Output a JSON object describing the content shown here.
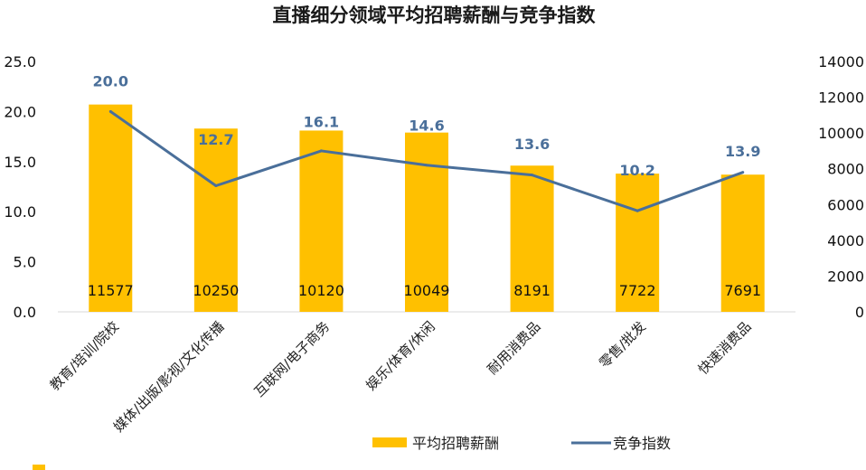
{
  "chart_data": {
    "type": "bar",
    "title": "直播细分领域平均招聘薪酬与竞争指数",
    "categories": [
      "教育/培训/院校",
      "媒体/出版/影视/文化传播",
      "互联网/电子商务",
      "娱乐/体育/休闲",
      "耐用消费品",
      "零售/批发",
      "快速消费品"
    ],
    "series": [
      {
        "name": "平均招聘薪酬",
        "type": "bar",
        "axis": "left",
        "values": [
          20.7,
          18.3,
          18.1,
          17.9,
          14.6,
          13.8,
          13.7
        ],
        "labels": [
          "11577",
          "10250",
          "10120",
          "10049",
          "8191",
          "7722",
          "7691"
        ],
        "color": "#ffc000"
      },
      {
        "name": "竞争指数",
        "type": "line",
        "axis": "right",
        "values": [
          11200,
          7050,
          9000,
          8200,
          7650,
          5650,
          7800
        ],
        "labels": [
          "20.0",
          "12.7",
          "16.1",
          "14.6",
          "13.6",
          "10.2",
          "13.9"
        ],
        "color": "#4a6f9a"
      }
    ],
    "y_left": {
      "ylim": [
        0,
        25
      ],
      "ticks": [
        "0.0",
        "5.0",
        "10.0",
        "15.0",
        "20.0",
        "25.0"
      ]
    },
    "y_right": {
      "ylim": [
        0,
        14000
      ],
      "ticks": [
        "0",
        "2000",
        "4000",
        "6000",
        "8000",
        "10000",
        "12000",
        "14000"
      ]
    },
    "legend": {
      "position": "bottom"
    },
    "grid": false
  }
}
